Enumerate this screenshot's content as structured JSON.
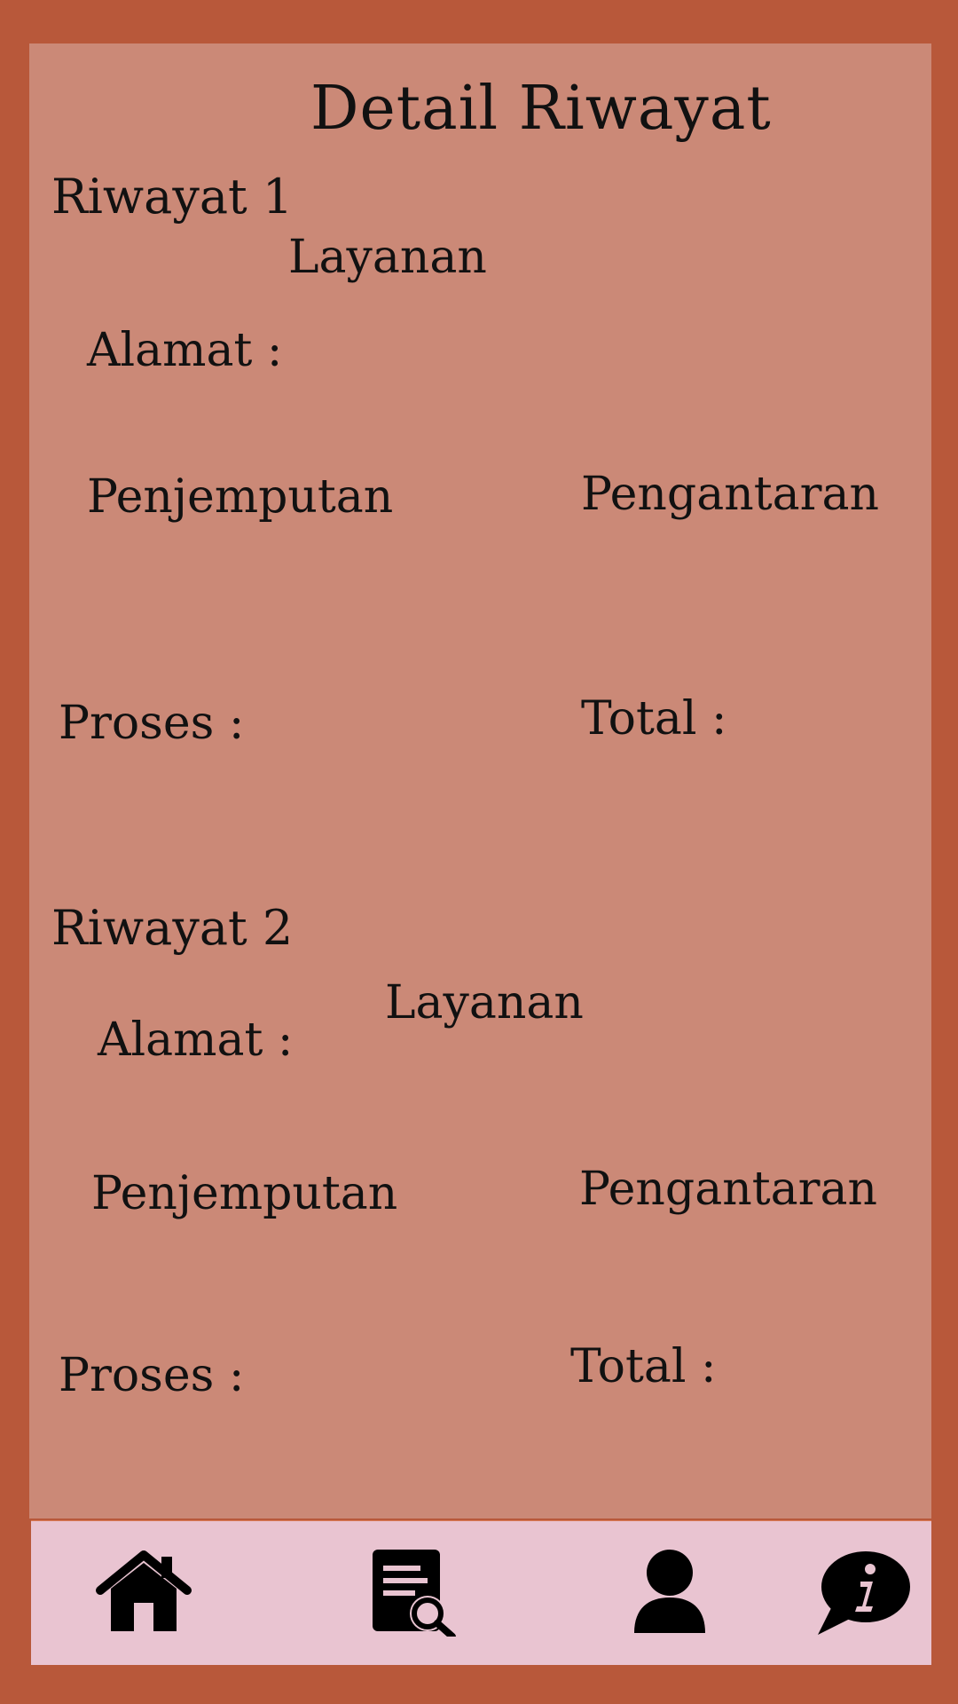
{
  "header": {
    "title": "Detail Riwayat"
  },
  "histories": [
    {
      "title": "Riwayat 1",
      "service_label": "Layanan",
      "address_label": "Alamat :",
      "pickup_label": "Penjemputan",
      "delivery_label": "Pengantaran",
      "process_label": "Proses :",
      "total_label": "Total :"
    },
    {
      "title": "Riwayat 2",
      "service_label": "Layanan",
      "address_label": "Alamat :",
      "pickup_label": "Penjemputan",
      "delivery_label": "Pengantaran",
      "process_label": "Proses :",
      "total_label": "Total :"
    }
  ],
  "bottom_nav": {
    "items": [
      {
        "icon": "home-icon"
      },
      {
        "icon": "document-search-icon"
      },
      {
        "icon": "user-icon"
      },
      {
        "icon": "info-chat-icon"
      }
    ]
  },
  "colors": {
    "frame": "#b8583a",
    "panel": "#cb8977",
    "nav_background": "#e9c4d1",
    "text": "#111111"
  }
}
